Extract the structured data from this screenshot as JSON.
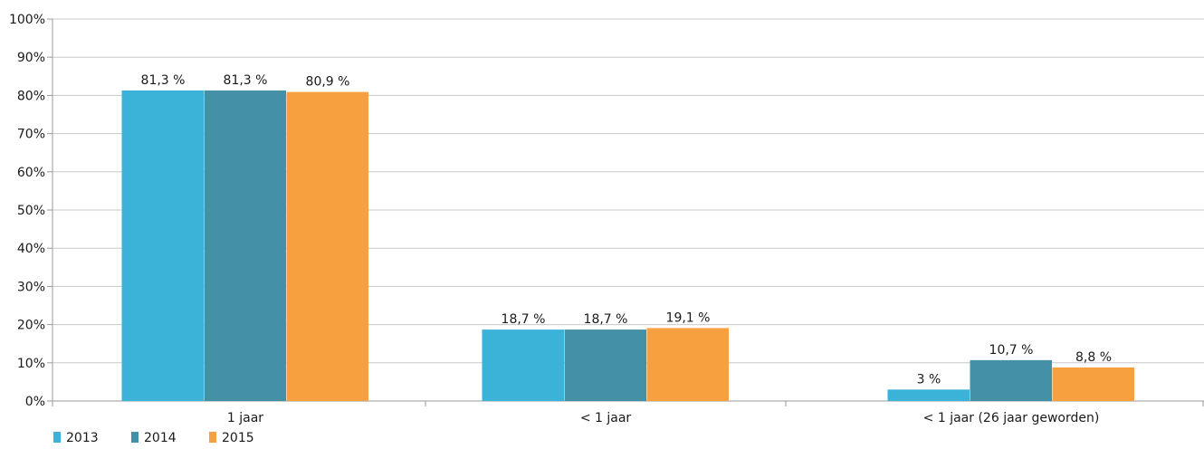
{
  "chart_data": {
    "type": "bar",
    "categories": [
      "1 jaar",
      "< 1 jaar",
      "< 1 jaar (26 jaar geworden)"
    ],
    "series": [
      {
        "name": "2013",
        "color": "#3bb3d9",
        "values": [
          81.3,
          18.7,
          3
        ],
        "labels": [
          "81,3 %",
          "18,7 %",
          "3 %"
        ]
      },
      {
        "name": "2014",
        "color": "#4490a6",
        "values": [
          81.3,
          18.7,
          10.7
        ],
        "labels": [
          "81,3 %",
          "18,7 %",
          "10,7 %"
        ]
      },
      {
        "name": "2015",
        "color": "#f7a040",
        "values": [
          80.9,
          19.1,
          8.8
        ],
        "labels": [
          "80,9 %",
          "19,1 %",
          "8,8 %"
        ]
      }
    ],
    "ylim": [
      0,
      100
    ],
    "yticks": [
      0,
      10,
      20,
      30,
      40,
      50,
      60,
      70,
      80,
      90,
      100
    ],
    "ytick_labels": [
      "0%",
      "10%",
      "20%",
      "30%",
      "40%",
      "50%",
      "60%",
      "70%",
      "80%",
      "90%",
      "100%"
    ],
    "title": "",
    "xlabel": "",
    "ylabel": "",
    "grid": true,
    "legend_position": "bottom-left"
  }
}
